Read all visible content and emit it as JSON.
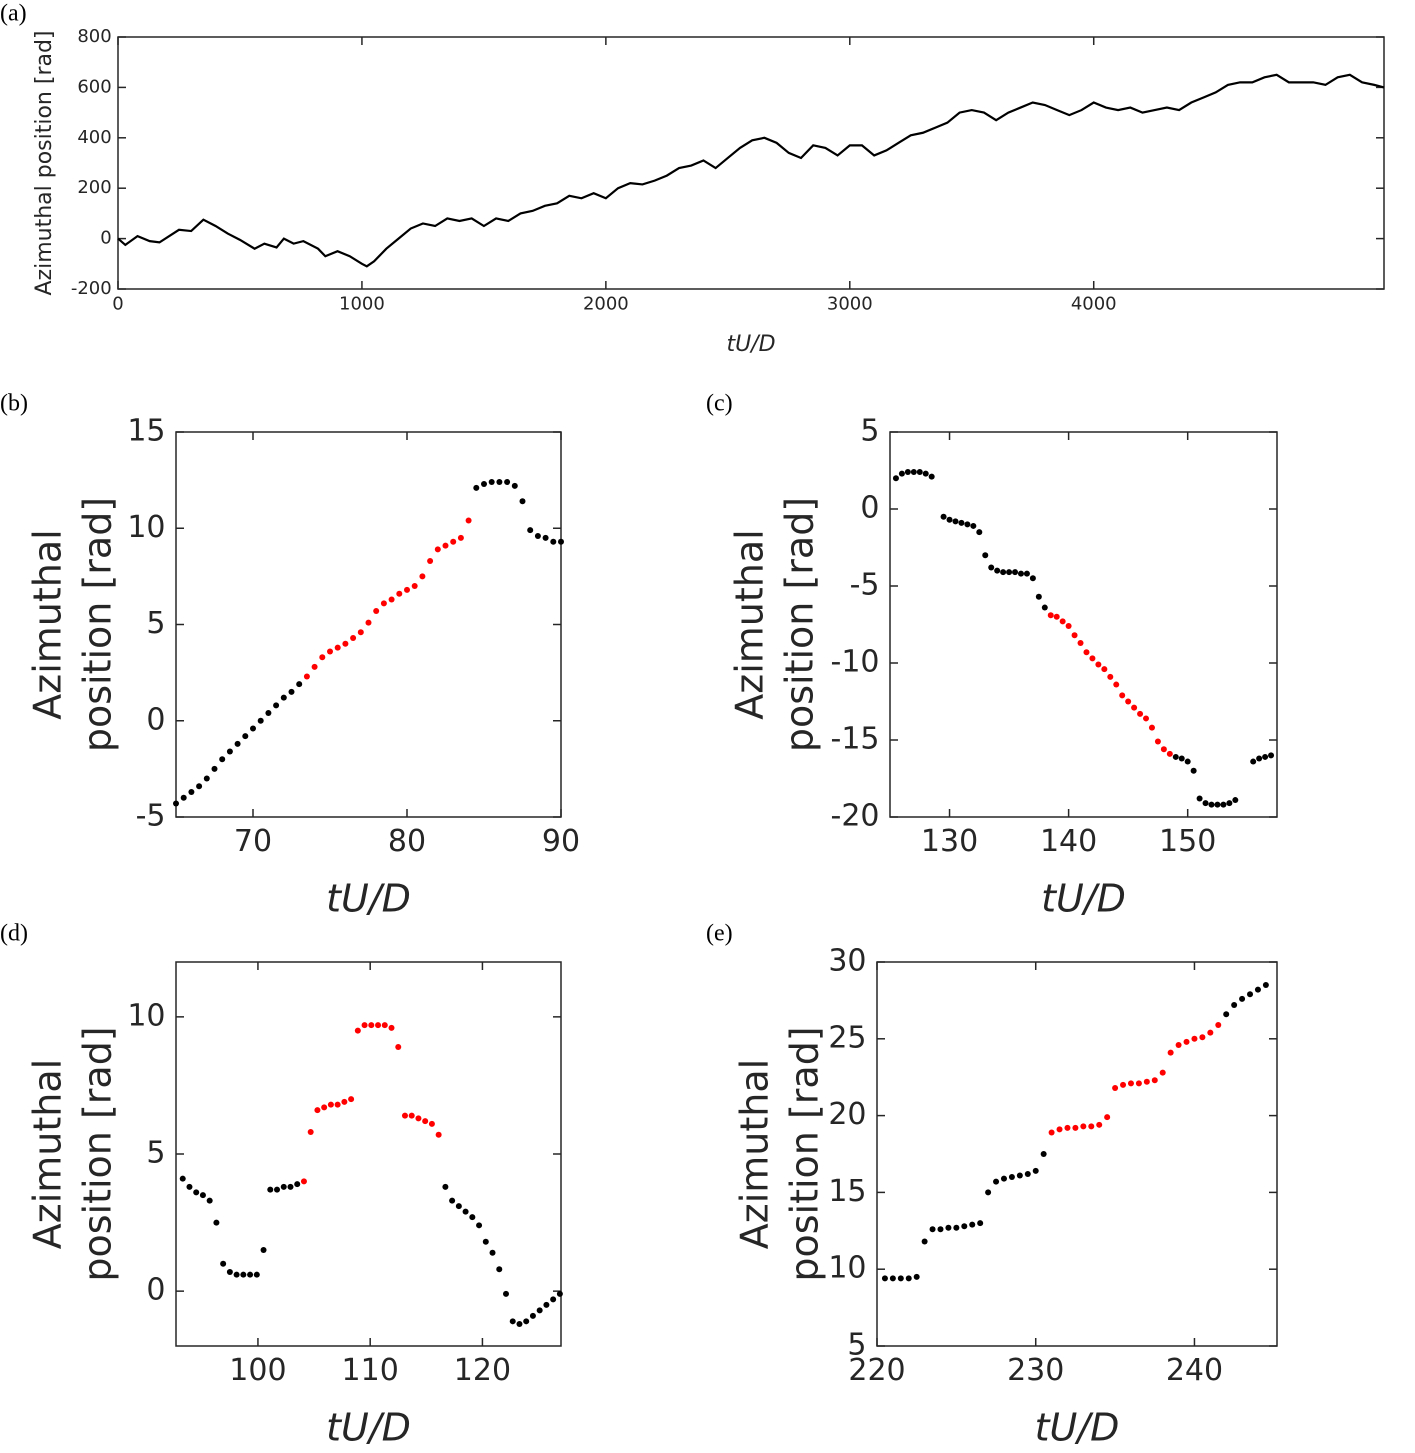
{
  "chart_data": [
    {
      "type": "line",
      "panel_label": "(a)",
      "xlabel": "tU/D",
      "ylabel": [
        "Azimuthal position [rad]"
      ],
      "xlim": [
        0,
        5190
      ],
      "xticks": [
        0,
        1000,
        2000,
        3000,
        4000
      ],
      "ylim": [
        -200,
        800
      ],
      "yticks": [
        -200,
        0,
        200,
        400,
        600,
        800
      ],
      "x": [
        0,
        30,
        80,
        130,
        170,
        250,
        300,
        350,
        400,
        450,
        500,
        560,
        600,
        650,
        680,
        720,
        760,
        820,
        850,
        900,
        950,
        1000,
        1020,
        1050,
        1100,
        1150,
        1200,
        1250,
        1300,
        1350,
        1400,
        1450,
        1500,
        1550,
        1600,
        1650,
        1700,
        1750,
        1800,
        1850,
        1900,
        1950,
        2000,
        2050,
        2100,
        2150,
        2200,
        2250,
        2300,
        2350,
        2400,
        2450,
        2500,
        2550,
        2600,
        2650,
        2700,
        2750,
        2800,
        2850,
        2900,
        2950,
        3000,
        3050,
        3100,
        3150,
        3200,
        3250,
        3300,
        3350,
        3400,
        3450,
        3500,
        3550,
        3600,
        3650,
        3700,
        3750,
        3800,
        3850,
        3900,
        3950,
        4000,
        4050,
        4100,
        4150,
        4200,
        4250,
        4300,
        4350,
        4400,
        4450,
        4500,
        4550,
        4600,
        4650,
        4700,
        4750,
        4800,
        4850,
        4900,
        4950,
        5000,
        5050,
        5100,
        5150,
        5190
      ],
      "series": [
        {
          "color": "#000000",
          "values": [
            0,
            -25,
            10,
            -10,
            -15,
            35,
            30,
            75,
            50,
            20,
            -5,
            -40,
            -20,
            -35,
            0,
            -20,
            -10,
            -40,
            -70,
            -50,
            -70,
            -100,
            -110,
            -90,
            -40,
            0,
            40,
            60,
            50,
            80,
            70,
            80,
            50,
            80,
            70,
            100,
            110,
            130,
            140,
            170,
            160,
            180,
            160,
            200,
            220,
            215,
            230,
            250,
            280,
            290,
            310,
            280,
            320,
            360,
            390,
            400,
            380,
            340,
            320,
            370,
            360,
            330,
            370,
            370,
            330,
            350,
            380,
            410,
            420,
            440,
            460,
            500,
            510,
            500,
            470,
            500,
            520,
            540,
            530,
            510,
            490,
            510,
            540,
            520,
            510,
            520,
            500,
            510,
            520,
            510,
            540,
            560,
            580,
            610,
            620,
            620,
            640,
            650,
            620,
            620,
            620,
            610,
            640,
            650,
            620,
            610,
            600
          ]
        }
      ]
    },
    {
      "type": "scatter",
      "panel_label": "(b)",
      "xlabel": "tU/D",
      "ylabel": [
        "Azimuthal",
        "position [rad]"
      ],
      "xlim": [
        65,
        90
      ],
      "xticks": [
        70,
        80,
        90
      ],
      "ylim": [
        -5,
        15
      ],
      "yticks": [
        -5,
        0,
        5,
        10,
        15
      ],
      "series": [
        {
          "color": "#000000",
          "x": [
            65,
            65.5,
            66,
            66.5,
            67,
            67.5,
            68,
            68.5,
            69,
            69.5,
            70,
            70.5,
            71,
            71.5,
            72,
            72.5,
            73,
            84.5,
            85,
            85.5,
            86,
            86.5,
            87,
            87.5,
            88,
            88.5,
            89,
            89.5,
            90
          ],
          "values": [
            -4.3,
            -4.0,
            -3.7,
            -3.4,
            -3.0,
            -2.5,
            -2.0,
            -1.6,
            -1.2,
            -0.8,
            -0.4,
            0.0,
            0.4,
            0.8,
            1.2,
            1.5,
            1.9,
            12.1,
            12.3,
            12.4,
            12.4,
            12.4,
            12.2,
            11.4,
            9.9,
            9.6,
            9.5,
            9.3,
            9.3
          ]
        },
        {
          "color": "#ff0000",
          "x": [
            73.5,
            74,
            74.5,
            75,
            75.5,
            76,
            76.5,
            77,
            77.5,
            78,
            78.5,
            79,
            79.5,
            80,
            80.5,
            81,
            81.5,
            82,
            82.5,
            83,
            83.5,
            84
          ],
          "values": [
            2.3,
            2.8,
            3.3,
            3.6,
            3.8,
            4.0,
            4.3,
            4.6,
            5.1,
            5.7,
            6.1,
            6.3,
            6.6,
            6.8,
            7.0,
            7.5,
            8.3,
            8.9,
            9.1,
            9.3,
            9.5,
            10.4
          ]
        }
      ]
    },
    {
      "type": "scatter",
      "panel_label": "(c)",
      "xlabel": "tU/D",
      "ylabel": [
        "Azimuthal",
        "position [rad]"
      ],
      "xlim": [
        125,
        157.5
      ],
      "xticks": [
        130,
        140,
        150
      ],
      "ylim": [
        -20,
        5
      ],
      "yticks": [
        -20,
        -15,
        -10,
        -5,
        0,
        5
      ],
      "series": [
        {
          "color": "#000000",
          "x": [
            125.5,
            126,
            126.5,
            127,
            127.5,
            128,
            128.5,
            129.5,
            130,
            130.5,
            131,
            131.5,
            132,
            132.5,
            133,
            133.5,
            134,
            134.5,
            135,
            135.5,
            136,
            136.5,
            137,
            137.5,
            138,
            149,
            149.5,
            150,
            150.5,
            151,
            151.5,
            152,
            152.5,
            153,
            153.5,
            154,
            155.5,
            156,
            156.5,
            157
          ],
          "values": [
            2.0,
            2.3,
            2.4,
            2.4,
            2.4,
            2.3,
            2.1,
            -0.5,
            -0.7,
            -0.8,
            -0.9,
            -1.0,
            -1.1,
            -1.5,
            -3.0,
            -3.8,
            -4.0,
            -4.1,
            -4.1,
            -4.1,
            -4.2,
            -4.2,
            -4.5,
            -5.7,
            -6.4,
            -16.1,
            -16.2,
            -16.4,
            -17.0,
            -18.8,
            -19.1,
            -19.2,
            -19.2,
            -19.2,
            -19.1,
            -18.9,
            -16.4,
            -16.2,
            -16.1,
            -16.0
          ]
        },
        {
          "color": "#ff0000",
          "x": [
            138.5,
            139,
            139.5,
            140,
            140.5,
            141,
            141.5,
            142,
            142.5,
            143,
            143.5,
            144,
            144.5,
            145,
            145.5,
            146,
            146.5,
            147,
            147.5,
            148,
            148.5
          ],
          "values": [
            -6.9,
            -7.0,
            -7.3,
            -7.6,
            -8.2,
            -8.7,
            -9.3,
            -9.7,
            -10.1,
            -10.4,
            -10.9,
            -11.4,
            -12.1,
            -12.5,
            -12.9,
            -13.3,
            -13.6,
            -14.2,
            -15.1,
            -15.6,
            -15.9
          ]
        }
      ]
    },
    {
      "type": "scatter",
      "panel_label": "(d)",
      "xlabel": "tU/D",
      "ylabel": [
        "Azimuthal",
        "position [rad]"
      ],
      "xlim": [
        92.7,
        127
      ],
      "xticks": [
        100,
        110,
        120
      ],
      "ylim": [
        -2,
        12
      ],
      "yticks": [
        0,
        5,
        10
      ],
      "series": [
        {
          "color": "#000000",
          "x": [
            93.3,
            93.9,
            94.5,
            95.1,
            95.7,
            96.3,
            96.9,
            97.5,
            98.1,
            98.7,
            99.3,
            99.9,
            100.5,
            101.1,
            101.7,
            102.3,
            102.9,
            103.5,
            116.7,
            117.3,
            117.9,
            118.5,
            119.1,
            119.7,
            120.3,
            120.9,
            121.5,
            122.1,
            122.7,
            123.3,
            123.9,
            124.5,
            125.1,
            125.7,
            126.3,
            126.9
          ],
          "values": [
            4.1,
            3.8,
            3.6,
            3.5,
            3.3,
            2.5,
            1.0,
            0.7,
            0.6,
            0.6,
            0.6,
            0.6,
            1.5,
            3.7,
            3.7,
            3.8,
            3.8,
            3.9,
            3.8,
            3.3,
            3.1,
            2.9,
            2.7,
            2.4,
            1.8,
            1.4,
            0.8,
            -0.1,
            -1.1,
            -1.2,
            -1.1,
            -0.9,
            -0.7,
            -0.5,
            -0.3,
            -0.1
          ]
        },
        {
          "color": "#ff0000",
          "x": [
            104.1,
            104.7,
            105.3,
            105.9,
            106.5,
            107.1,
            107.7,
            108.3,
            108.9,
            109.5,
            110.1,
            110.7,
            111.3,
            111.9,
            112.5,
            113.1,
            113.7,
            114.3,
            114.9,
            115.5,
            116.1
          ],
          "values": [
            4.0,
            5.8,
            6.6,
            6.7,
            6.8,
            6.8,
            6.9,
            7.0,
            9.5,
            9.7,
            9.7,
            9.7,
            9.7,
            9.6,
            8.9,
            6.4,
            6.4,
            6.3,
            6.2,
            6.1,
            5.7
          ]
        }
      ]
    },
    {
      "type": "scatter",
      "panel_label": "(e)",
      "xlabel": "tU/D",
      "ylabel": [
        "Azimuthal",
        "position [rad]"
      ],
      "xlim": [
        220,
        245.2
      ],
      "xticks": [
        220,
        230,
        240
      ],
      "ylim": [
        5,
        30
      ],
      "yticks": [
        5,
        10,
        15,
        20,
        25,
        30
      ],
      "series": [
        {
          "color": "#000000",
          "x": [
            220.5,
            221,
            221.5,
            222,
            222.5,
            223,
            223.5,
            224,
            224.5,
            225,
            225.5,
            226,
            226.5,
            227,
            227.5,
            228,
            228.5,
            229,
            229.5,
            230,
            230.5,
            242,
            242.5,
            243,
            243.5,
            244,
            244.5
          ],
          "values": [
            9.4,
            9.4,
            9.4,
            9.4,
            9.5,
            11.8,
            12.6,
            12.6,
            12.7,
            12.7,
            12.8,
            12.9,
            13.0,
            15.0,
            15.7,
            15.9,
            16.0,
            16.1,
            16.2,
            16.4,
            17.5,
            26.6,
            27.2,
            27.6,
            27.9,
            28.2,
            28.5
          ]
        },
        {
          "color": "#ff0000",
          "x": [
            231,
            231.5,
            232,
            232.5,
            233,
            233.5,
            234,
            234.5,
            235,
            235.5,
            236,
            236.5,
            237,
            237.5,
            238,
            238.5,
            239,
            239.5,
            240,
            240.5,
            241,
            241.5
          ],
          "values": [
            18.9,
            19.1,
            19.2,
            19.2,
            19.3,
            19.3,
            19.4,
            19.9,
            21.8,
            22.0,
            22.1,
            22.1,
            22.2,
            22.3,
            22.8,
            24.1,
            24.6,
            24.8,
            25.0,
            25.1,
            25.4,
            25.9
          ]
        }
      ]
    }
  ]
}
